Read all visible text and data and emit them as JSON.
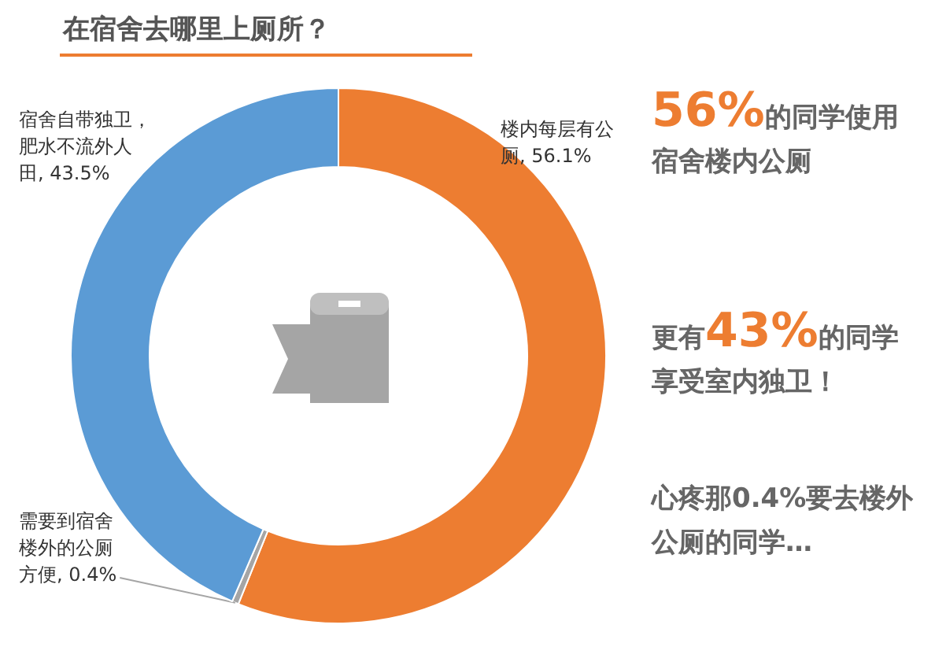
{
  "chart_data": {
    "type": "donut",
    "title": "在宿舍去哪里上厕所？",
    "categories": [
      "楼内每层有公厕",
      "需要到宿舍楼外的公厕方便",
      "宿舍自带独卫，肥水不流外人田"
    ],
    "values": [
      56.1,
      0.4,
      43.5
    ],
    "colors": [
      "#ed7d31",
      "#a5a5a5",
      "#5b9bd5"
    ],
    "value_labels": [
      "56.1%",
      "0.4%",
      "43.5%"
    ],
    "annotations": [
      "**56%**的同学使用宿舍楼内公厕",
      "更有**43%**的同学享受室内独卫！",
      "心疼那0.4%要去楼外公厕的同学…"
    ]
  }
}
